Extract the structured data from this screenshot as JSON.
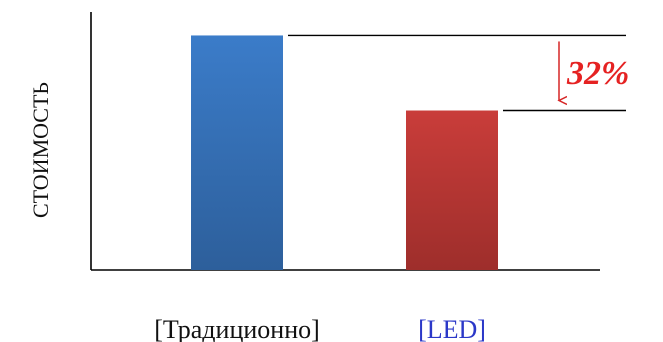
{
  "chart_data": {
    "type": "bar",
    "title": "",
    "xlabel": "",
    "ylabel": "СТОИМОСТЬ",
    "categories": [
      "[Традиционно]",
      "[LED]"
    ],
    "values": [
      100,
      68
    ],
    "ylim": [
      0,
      110
    ],
    "grid": false,
    "bar_colors": [
      "#3b7cc9",
      "#c93d3a"
    ],
    "bar_colors_dark": [
      "#2d5f9b",
      "#9e2e2b"
    ],
    "tick_label_colors": [
      "#111111",
      "#2b38c8"
    ],
    "annotation": {
      "text": "32%",
      "color": "#e52222",
      "arrow_color": "#d62626"
    }
  }
}
